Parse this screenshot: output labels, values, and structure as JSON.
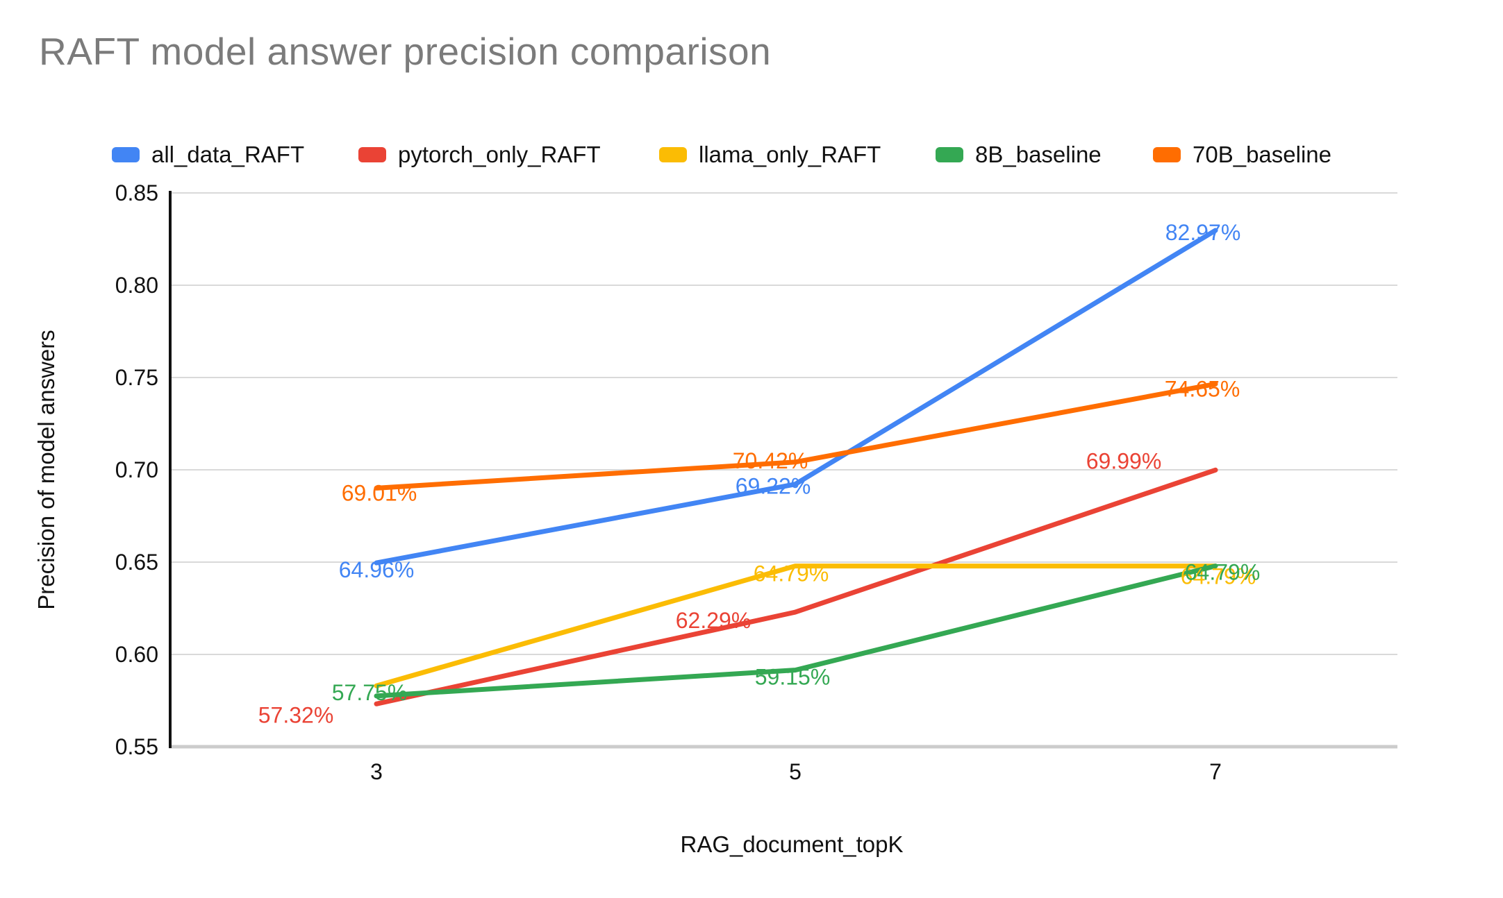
{
  "title": "RAFT model answer precision comparison",
  "chart_data": {
    "type": "line",
    "title": "RAFT model answer precision comparison",
    "xlabel": "RAG_document_topK",
    "ylabel": "Precision of model answers",
    "categories": [
      "3",
      "5",
      "7"
    ],
    "x_values": [
      3,
      5,
      7
    ],
    "ylim": [
      0.55,
      0.85
    ],
    "ytick_step": 0.05,
    "yticks": [
      "0.85",
      "0.80",
      "0.75",
      "0.70",
      "0.65",
      "0.60",
      "0.55"
    ],
    "grid": true,
    "legend_position": "top",
    "series": [
      {
        "name": "all_data_RAFT",
        "color": "#4285F4",
        "values_pct": [
          64.96,
          69.22,
          82.97
        ],
        "labels": [
          "64.96%",
          "69.22%",
          "82.97%"
        ],
        "label_visible": [
          true,
          true,
          true
        ]
      },
      {
        "name": "pytorch_only_RAFT",
        "color": "#EA4335",
        "values_pct": [
          57.32,
          62.29,
          69.99
        ],
        "labels": [
          "57.32%",
          "62.29%",
          "69.99%"
        ],
        "label_visible": [
          true,
          true,
          true
        ]
      },
      {
        "name": "llama_only_RAFT",
        "color": "#FBBC04",
        "values_pct": [
          58.3,
          64.79,
          64.79
        ],
        "labels": [
          null,
          "64.79%",
          "64.79%"
        ],
        "label_visible": [
          false,
          true,
          true
        ],
        "first_value_estimated": true
      },
      {
        "name": "8B_baseline",
        "color": "#34A853",
        "values_pct": [
          57.75,
          59.15,
          64.79
        ],
        "labels": [
          "57.75%",
          "59.15%",
          "64.79%"
        ],
        "label_visible": [
          true,
          true,
          true
        ]
      },
      {
        "name": "70B_baseline",
        "color": "#FF6D01",
        "values_pct": [
          69.01,
          70.42,
          74.65
        ],
        "labels": [
          "69.01%",
          "70.42%",
          "74.65%"
        ],
        "label_visible": [
          true,
          true,
          true
        ]
      }
    ]
  },
  "colors": {
    "title_text": "#7b7b7b",
    "axis_line": "#111111",
    "gridline": "#d9d9d9",
    "baseline": "#cccccc",
    "tick_text": "#111111",
    "legend_text": "#111111",
    "background": "#ffffff"
  }
}
